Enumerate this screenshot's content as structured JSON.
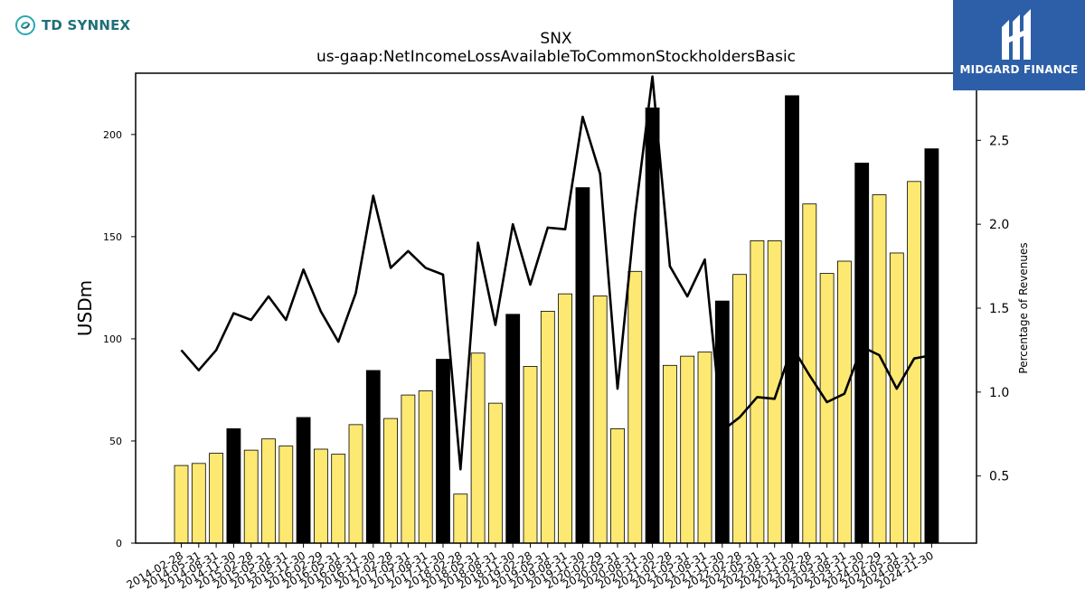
{
  "branding": {
    "left_logo_text": "TD SYNNEX",
    "right_logo_text": "MIDGARD FINANCE"
  },
  "colors": {
    "bar_highlight": "#000000",
    "bar_normal": "#fde971",
    "line": "#000000",
    "logo_left": "#1f6f78",
    "logo_right_bg": "#2d5fa8"
  },
  "chart_data": {
    "type": "bar",
    "title": "SNX",
    "subtitle": "us-gaap:NetIncomeLossAvailableToCommonStockholdersBasic",
    "ylabel": "USDm",
    "y2label": "Percentage of Revenues",
    "ylim": [
      0,
      230
    ],
    "y2lim": [
      0.1,
      2.9
    ],
    "yticks": [
      0,
      50,
      100,
      150,
      200
    ],
    "y2ticks": [
      0.5,
      1.0,
      1.5,
      2.0,
      2.5
    ],
    "legend": "none",
    "grid": false,
    "categories": [
      "2014-02-28",
      "2014-05-31",
      "2014-08-31",
      "2014-11-30",
      "2015-02-28",
      "2015-05-31",
      "2015-08-31",
      "2015-11-30",
      "2016-02-29",
      "2016-05-31",
      "2016-08-31",
      "2016-11-30",
      "2017-02-28",
      "2017-05-31",
      "2017-08-31",
      "2017-11-30",
      "2018-02-28",
      "2018-05-31",
      "2018-08-31",
      "2018-11-30",
      "2019-02-28",
      "2019-05-31",
      "2019-08-31",
      "2019-11-30",
      "2020-02-29",
      "2020-05-31",
      "2020-08-31",
      "2020-11-30",
      "2021-02-28",
      "2021-05-31",
      "2021-08-31",
      "2021-11-30",
      "2022-02-28",
      "2022-05-31",
      "2022-08-31",
      "2022-11-30",
      "2023-02-28",
      "2023-05-31",
      "2023-08-31",
      "2023-11-30",
      "2024-02-29",
      "2024-05-31",
      "2024-08-31",
      "2024-11-30"
    ],
    "values": [
      38,
      39,
      44,
      56,
      45.5,
      51,
      47.5,
      61.5,
      46,
      43.5,
      58,
      84.5,
      61,
      72.5,
      74.5,
      90,
      24,
      93,
      68.5,
      112,
      86.5,
      113.5,
      122,
      174,
      121,
      56,
      133,
      213,
      87,
      91.5,
      93.5,
      118.5,
      131.5,
      148,
      148,
      219,
      166,
      132,
      138,
      186,
      170.5,
      142,
      177,
      193
    ],
    "highlight": [
      false,
      false,
      false,
      true,
      false,
      false,
      false,
      true,
      false,
      false,
      false,
      true,
      false,
      false,
      false,
      true,
      false,
      false,
      false,
      true,
      false,
      false,
      false,
      true,
      false,
      false,
      false,
      true,
      false,
      false,
      false,
      true,
      false,
      false,
      false,
      true,
      false,
      false,
      false,
      true,
      false,
      false,
      false,
      true
    ],
    "pct_values": [
      1.25,
      1.13,
      1.25,
      1.47,
      1.43,
      1.57,
      1.43,
      1.73,
      1.48,
      1.3,
      1.59,
      2.17,
      1.74,
      1.84,
      1.74,
      1.7,
      0.54,
      1.89,
      1.4,
      2.0,
      1.64,
      1.98,
      1.97,
      2.64,
      2.3,
      1.02,
      2.05,
      2.88,
      1.75,
      1.57,
      1.79,
      0.77,
      0.85,
      0.97,
      0.96,
      1.27,
      1.1,
      0.94,
      0.99,
      1.27,
      1.22,
      1.02,
      1.2,
      1.22
    ]
  }
}
